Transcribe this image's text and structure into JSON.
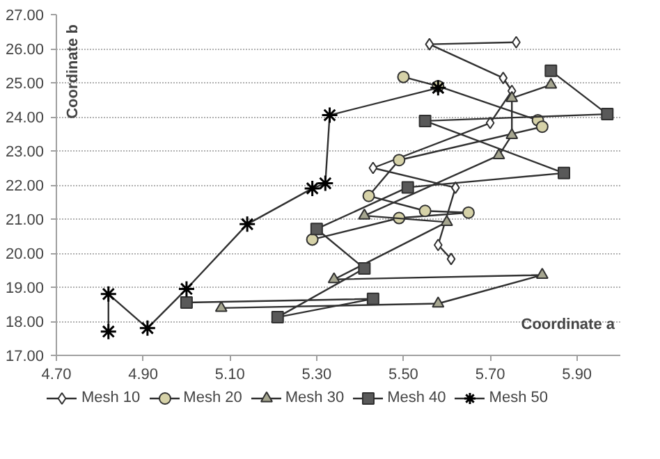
{
  "chart_data": {
    "type": "line",
    "xlabel": "Coordinate a",
    "ylabel": "Coordinate  b",
    "xlim": [
      4.7,
      6.0
    ],
    "ylim": [
      17,
      27
    ],
    "xticks": [
      {
        "value": 4.7,
        "label": "4.70"
      },
      {
        "value": 4.9,
        "label": "4.90"
      },
      {
        "value": 5.1,
        "label": "5.10"
      },
      {
        "value": 5.3,
        "label": "5.30"
      },
      {
        "value": 5.5,
        "label": "5.50"
      },
      {
        "value": 5.7,
        "label": "5.70"
      },
      {
        "value": 5.9,
        "label": "5.90"
      }
    ],
    "yticks": [
      {
        "value": 17,
        "label": "17.00"
      },
      {
        "value": 18,
        "label": "18.00"
      },
      {
        "value": 19,
        "label": "19.00"
      },
      {
        "value": 20,
        "label": "20.00"
      },
      {
        "value": 21,
        "label": "21.00"
      },
      {
        "value": 22,
        "label": "22.00"
      },
      {
        "value": 23,
        "label": "23.00"
      },
      {
        "value": 24,
        "label": "24.00"
      },
      {
        "value": 25,
        "label": "25.00"
      },
      {
        "value": 26,
        "label": "26.00"
      },
      {
        "value": 27,
        "label": "27.00"
      }
    ],
    "grid": "y",
    "legend": "bottom",
    "series": [
      {
        "name": "Mesh 10",
        "color": "#ffffff",
        "marker": "diamond",
        "x": [
          5.76,
          5.56,
          5.73,
          5.75,
          5.7,
          5.43,
          5.62,
          5.58,
          5.61
        ],
        "values": [
          26.19,
          26.13,
          25.14,
          24.76,
          23.82,
          22.5,
          21.92,
          20.24,
          19.83
        ]
      },
      {
        "name": "Mesh 20",
        "color": "#d6d2a8",
        "marker": "circle",
        "x": [
          5.5,
          5.58,
          5.81,
          5.82,
          5.49,
          5.42,
          5.55,
          5.65,
          5.49,
          5.29
        ],
        "values": [
          25.17,
          24.9,
          23.9,
          23.71,
          22.73,
          21.68,
          21.24,
          21.19,
          21.03,
          20.4
        ]
      },
      {
        "name": "Mesh 30",
        "color": "#a6a690",
        "marker": "triangle",
        "x": [
          5.08,
          5.58,
          5.82,
          5.34,
          5.6,
          5.41,
          5.72,
          5.75,
          5.75,
          5.84
        ],
        "values": [
          18.39,
          18.52,
          19.36,
          19.23,
          20.91,
          21.1,
          22.87,
          23.46,
          24.55,
          24.94
        ]
      },
      {
        "name": "Mesh 40",
        "color": "#595959",
        "marker": "square",
        "x": [
          5.84,
          5.97,
          5.55,
          5.87,
          5.51,
          5.3,
          5.41,
          5.21,
          5.43,
          5.0
        ],
        "values": [
          25.35,
          24.08,
          23.88,
          22.35,
          21.93,
          20.71,
          19.55,
          18.12,
          18.66,
          18.55
        ]
      },
      {
        "name": "Mesh 50",
        "color": "#000000",
        "marker": "cross",
        "x": [
          4.82,
          4.82,
          4.91,
          5.0,
          5.14,
          5.29,
          5.32,
          5.33,
          5.58
        ],
        "values": [
          17.7,
          18.8,
          17.8,
          18.95,
          20.85,
          21.9,
          22.05,
          24.05,
          24.85
        ]
      }
    ]
  }
}
